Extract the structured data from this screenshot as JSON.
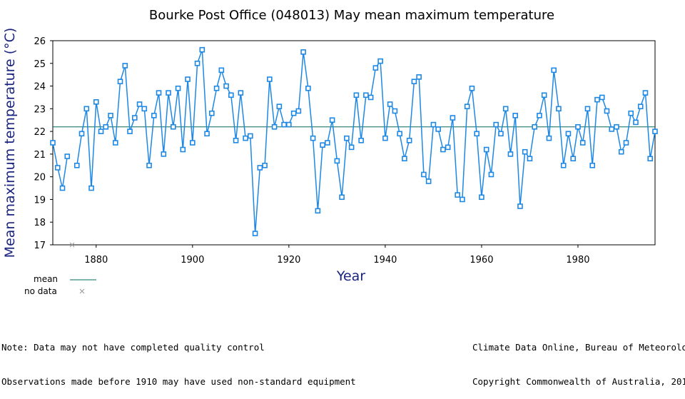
{
  "chart_data": {
    "type": "line",
    "title": "Bourke Post Office (048013) May mean maximum temperature",
    "xlabel": "Year",
    "ylabel": "Mean maximum temperature (°C)",
    "xlim": [
      1871,
      1996
    ],
    "ylim": [
      17,
      26
    ],
    "x_ticks": [
      1880,
      1900,
      1920,
      1940,
      1960,
      1980
    ],
    "y_ticks": [
      17,
      18,
      19,
      20,
      21,
      22,
      23,
      24,
      25,
      26
    ],
    "mean": 22.2,
    "grid": false,
    "legend": [
      {
        "label": "mean",
        "symbol": "line"
      },
      {
        "label": "no data",
        "symbol": "x"
      }
    ],
    "series": [
      {
        "color": "#1e88e5",
        "segments": [
          {
            "x": [
              1871,
              1872,
              1873,
              1874
            ],
            "y": [
              21.5,
              20.4,
              19.5,
              20.9
            ]
          },
          {
            "x": [
              1876,
              1877,
              1878,
              1879,
              1880,
              1881,
              1882,
              1883,
              1884,
              1885,
              1886,
              1887,
              1888,
              1889,
              1890,
              1891,
              1892,
              1893,
              1894,
              1895,
              1896,
              1897,
              1898,
              1899,
              1900,
              1901,
              1902,
              1903,
              1904,
              1905,
              1906,
              1907,
              1908,
              1909,
              1910,
              1911,
              1912,
              1913,
              1914,
              1915,
              1916,
              1917,
              1918,
              1919,
              1920,
              1921,
              1922,
              1923,
              1924,
              1925,
              1926,
              1927,
              1928,
              1929,
              1930,
              1931,
              1932,
              1933,
              1934,
              1935,
              1936,
              1937,
              1938,
              1939,
              1940,
              1941,
              1942,
              1943,
              1944,
              1945,
              1946,
              1947,
              1948,
              1949,
              1950,
              1951,
              1952,
              1953,
              1954,
              1955,
              1956,
              1957,
              1958,
              1959,
              1960,
              1961,
              1962,
              1963,
              1964,
              1965,
              1966,
              1967,
              1968,
              1969,
              1970,
              1971,
              1972,
              1973,
              1974,
              1975,
              1976,
              1977,
              1978,
              1979,
              1980,
              1981,
              1982,
              1983,
              1984,
              1985,
              1986,
              1987,
              1988,
              1989,
              1990,
              1991,
              1992,
              1993,
              1994,
              1995,
              1996
            ],
            "y": [
              20.5,
              21.9,
              23.0,
              19.5,
              23.3,
              22.0,
              22.2,
              22.7,
              21.5,
              24.2,
              24.9,
              22.0,
              22.6,
              23.2,
              23.0,
              20.5,
              22.7,
              23.7,
              21.0,
              23.7,
              22.2,
              23.9,
              21.2,
              24.3,
              21.5,
              25.0,
              25.6,
              21.9,
              22.8,
              23.9,
              24.7,
              24.0,
              23.6,
              21.6,
              23.7,
              21.7,
              21.8,
              17.5,
              20.4,
              20.5,
              24.3,
              22.2,
              23.1,
              22.3,
              22.3,
              22.8,
              22.9,
              25.5,
              23.9,
              21.7,
              18.5,
              21.4,
              21.5,
              22.5,
              20.7,
              19.1,
              21.7,
              21.3,
              23.6,
              21.6,
              23.6,
              23.5,
              24.8,
              25.1,
              21.7,
              23.2,
              22.9,
              21.9,
              20.8,
              21.6,
              24.2,
              24.4,
              20.1,
              19.8,
              22.3,
              22.1,
              21.2,
              21.3,
              22.6,
              19.2,
              19.0,
              23.1,
              23.9,
              21.9,
              19.1,
              21.2,
              20.1,
              22.3,
              21.9,
              23.0,
              21.0,
              22.7,
              18.7,
              21.1,
              20.8,
              22.2,
              22.7,
              23.6,
              21.7,
              24.7,
              23.0,
              20.5,
              21.9,
              20.8,
              22.2,
              21.5,
              23.0,
              20.5,
              23.4,
              23.5,
              22.9,
              22.1,
              22.2,
              21.1,
              21.5,
              22.8,
              22.4,
              23.1,
              23.7,
              20.8,
              22.0
            ]
          }
        ]
      }
    ],
    "no_data_years": [
      1875
    ]
  },
  "notes": {
    "left": [
      "Note: Data may not have completed quality control",
      "Observations made before 1910 may have used non-standard equipment"
    ],
    "right": [
      "Climate Data Online, Bureau of Meteorology",
      "Copyright Commonwealth of Australia, 2014"
    ]
  },
  "colors": {
    "series": "#1e88e5",
    "mean_line": "#00695c",
    "axis_text": "#1a237e",
    "no_data_marker": "#9e9e9e"
  }
}
